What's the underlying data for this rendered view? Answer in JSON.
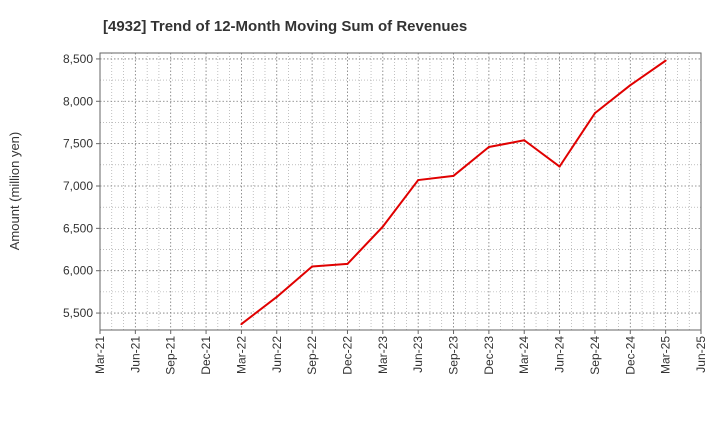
{
  "chart_data": {
    "type": "line",
    "title": "[4932]  Trend of 12-Month Moving Sum of Revenues",
    "xlabel": "",
    "ylabel": "Amount (million yen)",
    "x_ticks": [
      "Mar-21",
      "Jun-21",
      "Sep-21",
      "Dec-21",
      "Mar-22",
      "Jun-22",
      "Sep-22",
      "Dec-22",
      "Mar-23",
      "Jun-23",
      "Sep-23",
      "Dec-23",
      "Mar-24",
      "Jun-24",
      "Sep-24",
      "Dec-24",
      "Mar-25",
      "Jun-25"
    ],
    "y_ticks": [
      5500,
      6000,
      6500,
      7000,
      7500,
      8000,
      8500
    ],
    "y_tick_labels": [
      "5,500",
      "6,000",
      "6,500",
      "7,000",
      "7,500",
      "8,000",
      "8,500"
    ],
    "ylim": [
      5300,
      8570
    ],
    "grid": true,
    "series": [
      {
        "color": "#e00000",
        "points": [
          {
            "x": "Mar-22",
            "y": 5370
          },
          {
            "x": "Jun-22",
            "y": 5690
          },
          {
            "x": "Sep-22",
            "y": 6050
          },
          {
            "x": "Dec-22",
            "y": 6080
          },
          {
            "x": "Mar-23",
            "y": 6520
          },
          {
            "x": "Jun-23",
            "y": 7070
          },
          {
            "x": "Sep-23",
            "y": 7120
          },
          {
            "x": "Dec-23",
            "y": 7460
          },
          {
            "x": "Mar-24",
            "y": 7540
          },
          {
            "x": "Jun-24",
            "y": 7230
          },
          {
            "x": "Sep-24",
            "y": 7860
          },
          {
            "x": "Dec-24",
            "y": 8190
          },
          {
            "x": "Mar-25",
            "y": 8480
          }
        ]
      }
    ]
  }
}
